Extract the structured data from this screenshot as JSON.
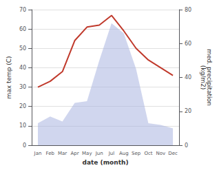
{
  "chart_data": {
    "type": "line",
    "xlabel": "date (month)",
    "ylabel": "max temp (C)",
    "y2label": "med. precipitation\n(kg/m2)",
    "categories": [
      "Jan",
      "Feb",
      "Mar",
      "Apr",
      "May",
      "Jun",
      "Jul",
      "Aug",
      "Sep",
      "Oct",
      "Nov",
      "Dec"
    ],
    "series": [
      {
        "type": "area",
        "axis": "y2",
        "color": "#aab4e0",
        "values": [
          13,
          17,
          14,
          25,
          26,
          50,
          72,
          66,
          45,
          13,
          12,
          10
        ]
      },
      {
        "type": "line",
        "color": "#c0392b",
        "values": [
          30,
          33,
          38,
          54,
          61,
          62,
          67,
          59,
          50,
          44,
          40,
          36
        ]
      }
    ],
    "ylim": [
      0,
      70
    ],
    "yticks": [
      0,
      10,
      20,
      30,
      40,
      50,
      60,
      70
    ],
    "y2lim": [
      0,
      80
    ],
    "y2ticks": [
      0,
      20,
      40,
      60,
      80
    ],
    "grid": true
  }
}
